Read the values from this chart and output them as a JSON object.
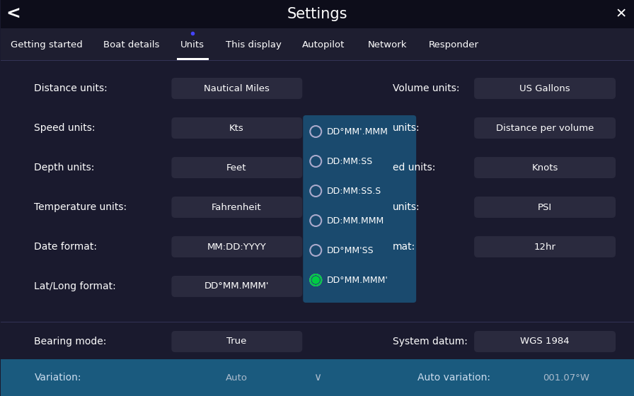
{
  "bg_color": "#1a1a2e",
  "header_bg": "#0d0d1a",
  "tab_bar_bg": "#1a1a2e",
  "title": "Settings",
  "title_color": "#ffffff",
  "title_fontsize": 15,
  "back_arrow": "‹",
  "close_x": "×",
  "tabs": [
    "Getting started",
    "Boat details",
    "Units",
    "This display",
    "Autopilot",
    "Network",
    "Responder"
  ],
  "active_tab": "Units",
  "tab_color": "#ffffff",
  "active_tab_underline": "#ffffff",
  "separator_color": "#333355",
  "button_bg": "#2a2a3e",
  "button_text_color": "#ffffff",
  "label_color": "#ffffff",
  "dropdown_bg": "#1a4a6e",
  "dropdown_selected_bg": "#1a4a6e",
  "dropdown_item_bg": "#1a4a6e",
  "dropdown_border": "#2a6a9e",
  "radio_color": "#ffffff",
  "radio_selected_color": "#00cc44",
  "bottom_bar_bg": "#1a5a7e",
  "rows": [
    {
      "label": "Distance units:",
      "value": "Nautical Miles",
      "col2_label": "Volume units:",
      "col2_value": "US Gallons"
    },
    {
      "label": "Speed units:",
      "value": "Kts",
      "col2_label": "units:",
      "col2_value": "Distance per volume"
    },
    {
      "label": "Depth units:",
      "value": "Feet",
      "col2_label": "ed units:",
      "col2_value": "Knots"
    },
    {
      "label": "Temperature units:",
      "value": "Fahrenheit",
      "col2_label": "units:",
      "col2_value": "PSI"
    },
    {
      "label": "Date format:",
      "value": "MM:DD:YYYY",
      "col2_label": "mat:",
      "col2_value": "12hr"
    },
    {
      "label": "Lat/Long format:",
      "value": "DD°MM.MMM'",
      "col2_label": "",
      "col2_value": ""
    }
  ],
  "dropdown_items": [
    {
      "text": "DD°MM'.MMM",
      "selected": false
    },
    {
      "text": "DD:MM:SS",
      "selected": false
    },
    {
      "text": "DD:MM:SS.S",
      "selected": false
    },
    {
      "text": "DD:MM.MMM",
      "selected": false
    },
    {
      "text": "DD°MM'SS",
      "selected": false
    },
    {
      "text": "DD°MM.MMM'",
      "selected": true
    }
  ],
  "bottom_rows": [
    {
      "label": "Bearing mode:",
      "value": "True",
      "col2_label": "System datum:",
      "col2_value": "WGS 1984"
    }
  ],
  "variation_label": "Variation:",
  "variation_value": "Auto",
  "auto_variation_label": "Auto variation:",
  "auto_variation_value": "001.07°W",
  "blue_dot_color": "#4444ff"
}
